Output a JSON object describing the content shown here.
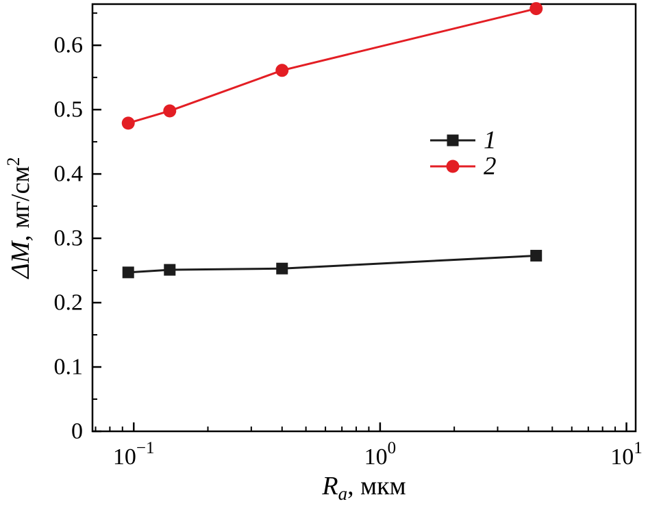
{
  "figure": {
    "background": "#ffffff"
  },
  "chart_data": {
    "type": "line",
    "x": [
      0.095,
      0.14,
      0.4,
      4.3
    ],
    "series": [
      {
        "name": "1",
        "values": [
          0.247,
          0.251,
          0.253,
          0.273
        ],
        "color": "#1c1c1c",
        "marker": "square"
      },
      {
        "name": "2",
        "values": [
          0.479,
          0.498,
          0.561,
          0.657
        ],
        "color": "#e31e24",
        "marker": "circle"
      }
    ],
    "title": "",
    "xlabel": "Ra, мкм",
    "ylabel": "ΔM, мг/см2",
    "xscale": "log",
    "yscale": "linear",
    "xlim": [
      0.068,
      10.9
    ],
    "ylim": [
      0,
      0.664
    ],
    "yticks": [
      0,
      0.1,
      0.2,
      0.3,
      0.4,
      0.5,
      0.6
    ],
    "ytick_labels": [
      "0",
      "0.1",
      "0.2",
      "0.3",
      "0.4",
      "0.5",
      "0.6"
    ],
    "xticks": [
      0.1,
      1,
      10
    ],
    "xtick_labels": [
      {
        "base": "10",
        "exp": "−1"
      },
      {
        "base": "10",
        "exp": "0"
      },
      {
        "base": "10",
        "exp": "1"
      }
    ],
    "y_minor_step": 0.05,
    "grid": false,
    "legend": {
      "position": "center-right",
      "entries": [
        {
          "label": "1"
        },
        {
          "label": "2"
        }
      ]
    },
    "xlabel_parts": [
      {
        "text": "R",
        "style": "italic"
      },
      {
        "text": "a",
        "style": "italic-sub"
      },
      {
        "text": ", мкм",
        "style": "normal"
      }
    ],
    "ylabel_parts": [
      {
        "text": "ΔM",
        "style": "italic"
      },
      {
        "text": ", мг/см",
        "style": "normal"
      },
      {
        "text": "2",
        "style": "super"
      }
    ]
  }
}
